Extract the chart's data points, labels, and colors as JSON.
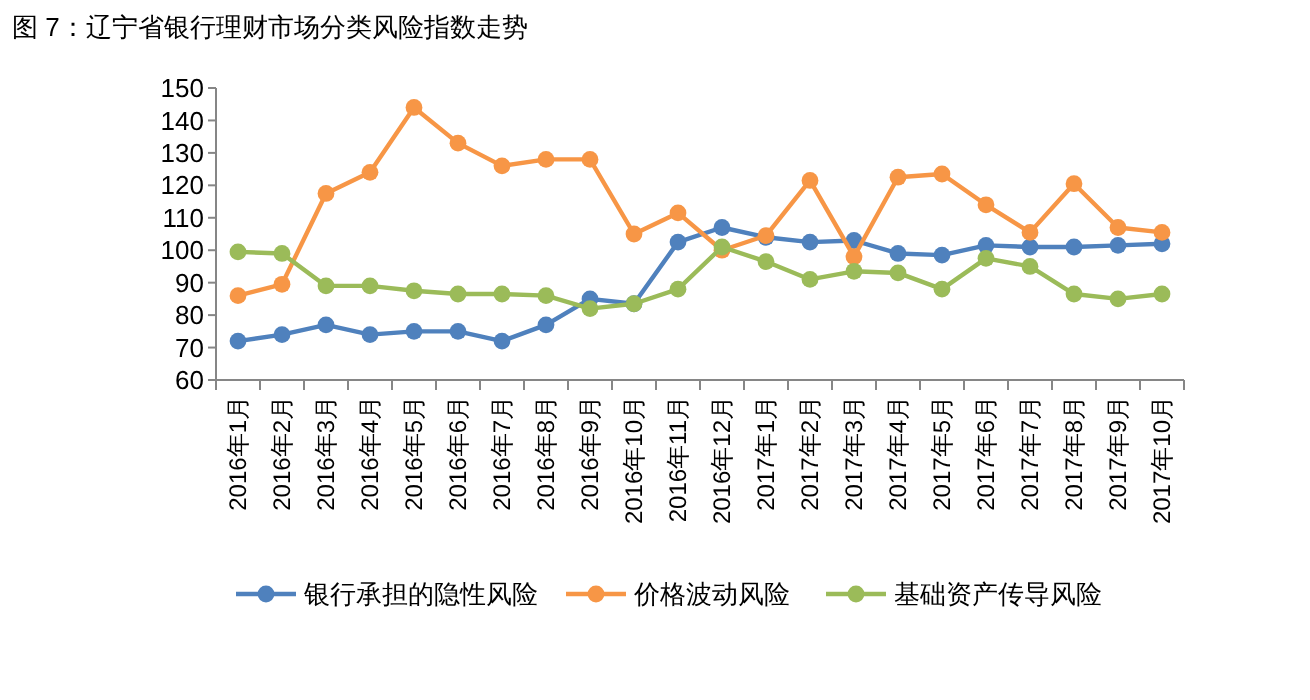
{
  "chart_data": {
    "type": "line",
    "title": "图 7：辽宁省银行理财市场分类风险指数走势",
    "categories": [
      "2016年1月",
      "2016年2月",
      "2016年3月",
      "2016年4月",
      "2016年5月",
      "2016年6月",
      "2016年7月",
      "2016年8月",
      "2016年9月",
      "2016年10月",
      "2016年11月",
      "2016年12月",
      "2017年1月",
      "2017年2月",
      "2017年3月",
      "2017年4月",
      "2017年5月",
      "2017年6月",
      "2017年7月",
      "2017年8月",
      "2017年9月",
      "2017年10月"
    ],
    "series": [
      {
        "name": "银行承担的隐性风险",
        "color": "#4f81bd",
        "values": [
          72,
          74,
          77,
          74,
          75,
          75,
          72,
          77,
          85,
          83.5,
          102.5,
          107,
          104,
          102.5,
          103,
          99,
          98.5,
          101.5,
          101,
          101,
          101.5,
          102
        ]
      },
      {
        "name": "价格波动风险",
        "color": "#f79646",
        "values": [
          86,
          89.5,
          117.5,
          124,
          144,
          133,
          126,
          128,
          128,
          105,
          111.5,
          100,
          104.5,
          121.5,
          98,
          122.5,
          123.5,
          114,
          105.5,
          120.5,
          107,
          105.5
        ]
      },
      {
        "name": "基础资产传导风险",
        "color": "#9bbb59",
        "values": [
          99.5,
          99,
          89,
          89,
          87.5,
          86.5,
          86.5,
          86,
          82,
          83.5,
          88,
          101,
          96.5,
          91,
          93.5,
          93,
          88,
          97.5,
          95,
          86.5,
          85,
          86.5
        ]
      }
    ],
    "ylim": [
      60,
      150
    ],
    "yticks": [
      60,
      70,
      80,
      90,
      100,
      110,
      120,
      130,
      140,
      150
    ],
    "grid": false,
    "legend": "bottom",
    "marker": "circle",
    "line_style": "solid"
  }
}
